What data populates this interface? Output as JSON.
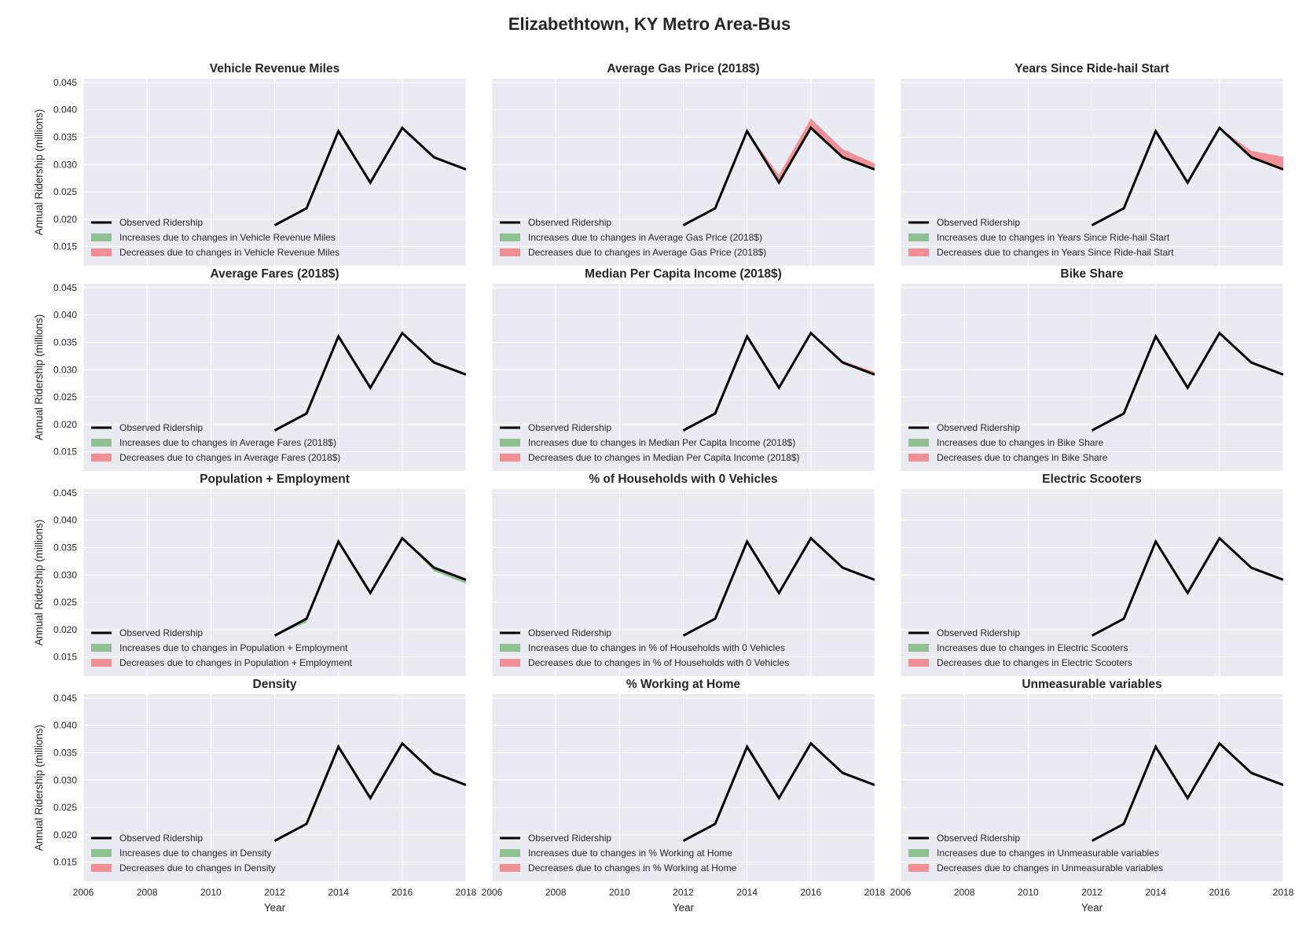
{
  "figure": {
    "title": "Elizabethtown, KY Metro Area-Bus"
  },
  "colors": {
    "panel_background": "#eaeaf2",
    "grid": "#ffffff",
    "observed": "#000000",
    "increase": "#8fc08f",
    "decrease": "#f19094"
  },
  "chart_data": {
    "type": "area",
    "x_label": "Year",
    "y_label": "Annual Ridership (millions)",
    "xlim": [
      2006,
      2018
    ],
    "ylim": [
      0.0115,
      0.0457
    ],
    "x_ticks": [
      "2006",
      "2008",
      "2010",
      "2012",
      "2014",
      "2016",
      "2018"
    ],
    "y_ticks": [
      "0.015",
      "0.020",
      "0.025",
      "0.030",
      "0.035",
      "0.040",
      "0.045"
    ],
    "legend_position": "lower-left",
    "legend_observed": "Observed Ridership",
    "observed": {
      "x": [
        2012,
        2013,
        2014,
        2015,
        2016,
        2017,
        2018
      ],
      "y": [
        0.0189,
        0.022,
        0.0361,
        0.0267,
        0.0367,
        0.0313,
        0.0291
      ]
    },
    "panels": [
      {
        "title": "Vehicle Revenue Miles",
        "legend_increase": "Increases due to changes in Vehicle Revenue Miles",
        "legend_decrease": "Decreases due to changes in Vehicle Revenue Miles",
        "increases": [],
        "decreases": []
      },
      {
        "title": "Average Gas Price (2018$)",
        "legend_increase": "Increases due to changes in Average Gas Price (2018$)",
        "legend_decrease": "Decreases due to changes in Average Gas Price (2018$)",
        "increases": [],
        "decreases": [
          {
            "x": [
              2014,
              2015,
              2016,
              2017,
              2018
            ],
            "lower": [
              0.0361,
              0.0267,
              0.0367,
              0.0313,
              0.0291
            ],
            "upper": [
              0.0361,
              0.0281,
              0.0384,
              0.0328,
              0.0302
            ]
          }
        ]
      },
      {
        "title": "Years Since Ride-hail Start",
        "legend_increase": "Increases due to changes in Years Since Ride-hail Start",
        "legend_decrease": "Decreases due to changes in Years Since Ride-hail Start",
        "increases": [],
        "decreases": [
          {
            "x": [
              2016,
              2017,
              2018
            ],
            "lower": [
              0.0367,
              0.0313,
              0.0291
            ],
            "upper": [
              0.0367,
              0.0325,
              0.0314
            ]
          }
        ]
      },
      {
        "title": "Average Fares (2018$)",
        "legend_increase": "Increases due to changes in Average Fares (2018$)",
        "legend_decrease": "Decreases due to changes in Average Fares (2018$)",
        "increases": [],
        "decreases": []
      },
      {
        "title": "Median Per Capita Income (2018$)",
        "legend_increase": "Increases due to changes in Median Per Capita Income (2018$)",
        "legend_decrease": "Decreases due to changes in Median Per Capita Income (2018$)",
        "increases": [],
        "decreases": [
          {
            "x": [
              2017,
              2018
            ],
            "lower": [
              0.0313,
              0.0291
            ],
            "upper": [
              0.0316,
              0.0296
            ]
          }
        ]
      },
      {
        "title": "Bike Share",
        "legend_increase": "Increases due to changes in Bike Share",
        "legend_decrease": "Decreases due to changes in Bike Share",
        "increases": [],
        "decreases": []
      },
      {
        "title": "Population + Employment",
        "legend_increase": "Increases due to changes in Population + Employment",
        "legend_decrease": "Decreases due to changes in Population + Employment",
        "increases": [
          {
            "x": [
              2012,
              2013
            ],
            "lower": [
              0.0189,
              0.0213
            ],
            "upper": [
              0.0189,
              0.022
            ]
          },
          {
            "x": [
              2016,
              2017,
              2018
            ],
            "lower": [
              0.0367,
              0.0307,
              0.0284
            ],
            "upper": [
              0.0367,
              0.0313,
              0.0291
            ]
          }
        ],
        "decreases": []
      },
      {
        "title": "% of Households with 0 Vehicles",
        "legend_increase": "Increases due to changes in % of Households with 0 Vehicles",
        "legend_decrease": "Decreases due to changes in % of Households with 0 Vehicles",
        "increases": [],
        "decreases": []
      },
      {
        "title": "Electric Scooters",
        "legend_increase": "Increases due to changes in Electric Scooters",
        "legend_decrease": "Decreases due to changes in Electric Scooters",
        "increases": [],
        "decreases": []
      },
      {
        "title": "Density",
        "legend_increase": "Increases due to changes in Density",
        "legend_decrease": "Decreases due to changes in Density",
        "increases": [],
        "decreases": []
      },
      {
        "title": "% Working at Home",
        "legend_increase": "Increases due to changes in % Working at Home",
        "legend_decrease": "Decreases due to changes in % Working at Home",
        "increases": [],
        "decreases": []
      },
      {
        "title": "Unmeasurable variables",
        "legend_increase": "Increases due to changes in Unmeasurable variables",
        "legend_decrease": "Decreases due to changes in Unmeasurable variables",
        "increases": [],
        "decreases": []
      }
    ]
  }
}
